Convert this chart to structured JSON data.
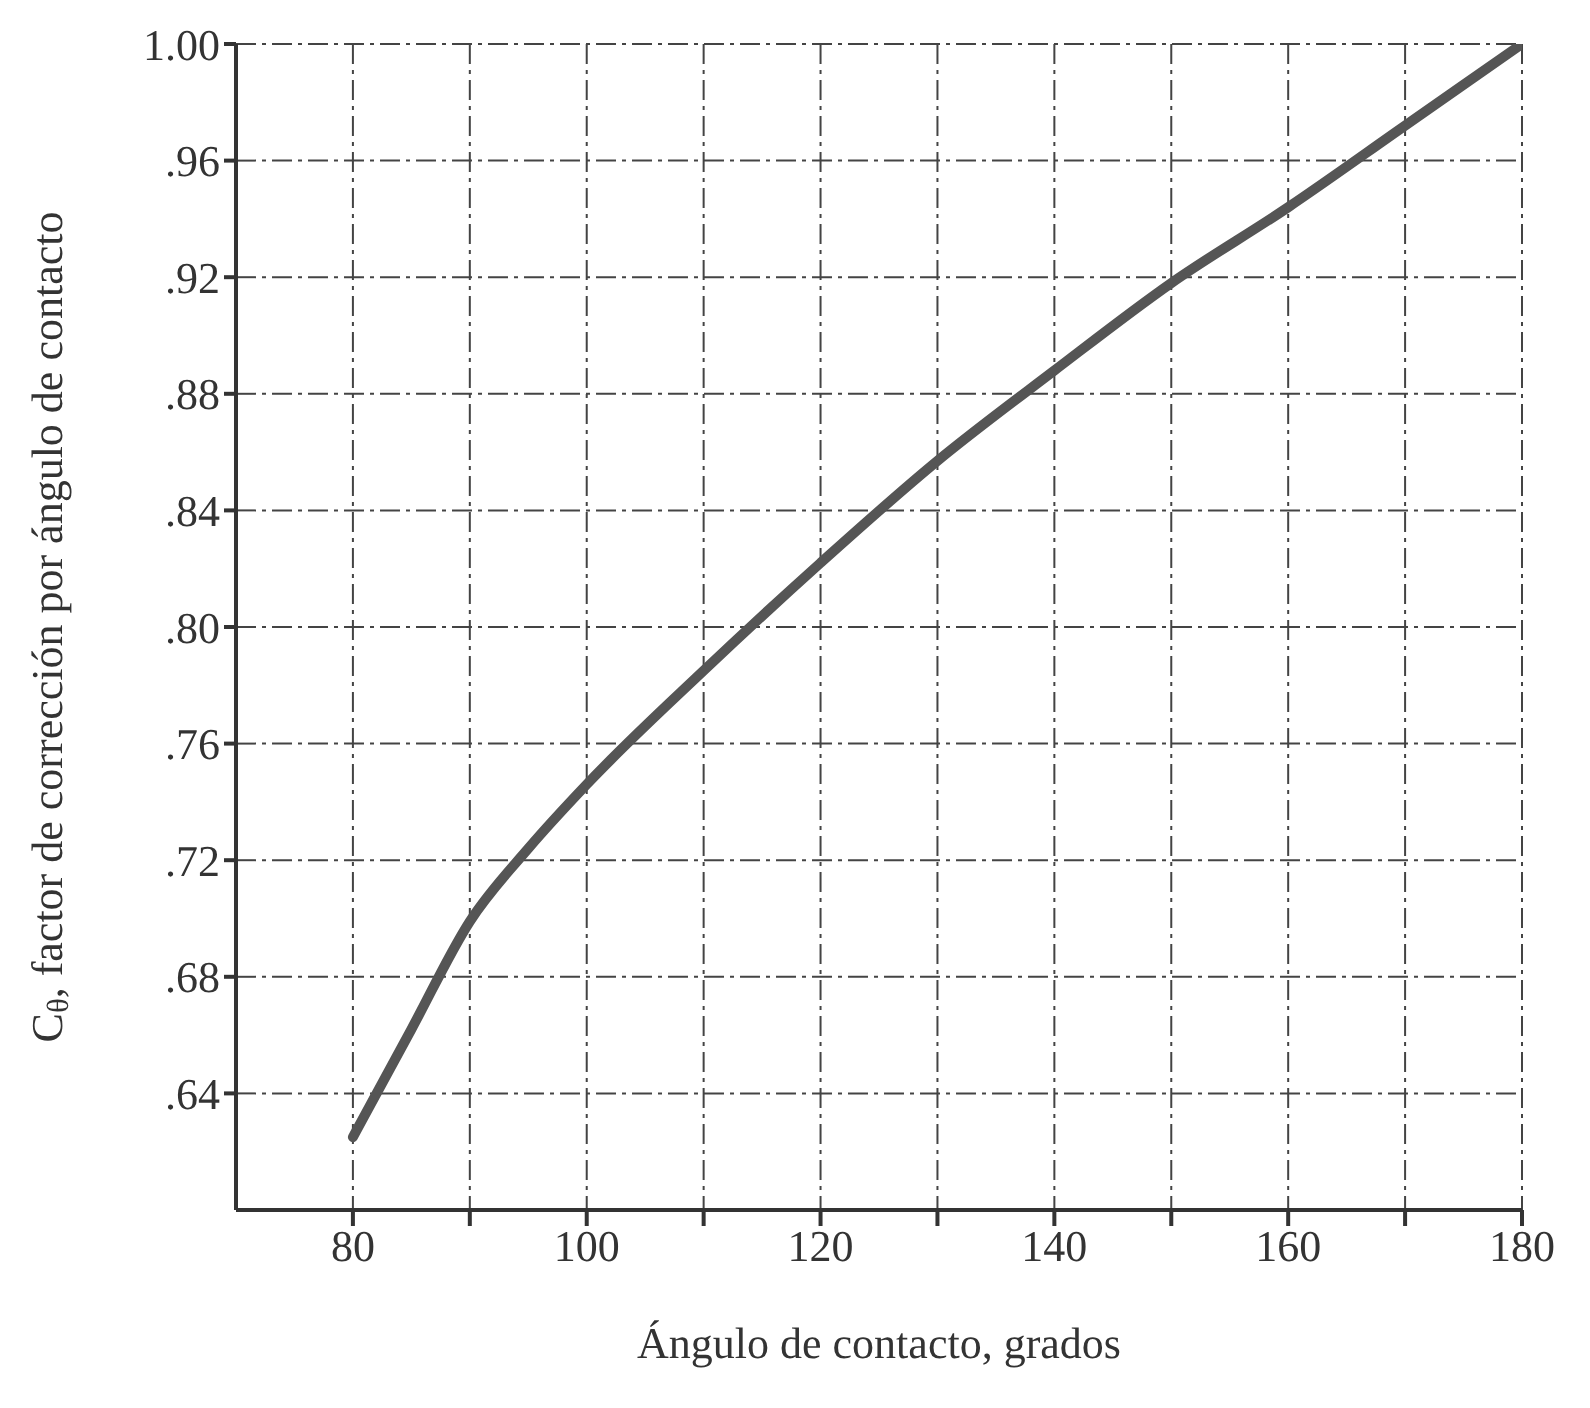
{
  "chart_data": {
    "type": "line",
    "xlabel": "Ángulo de contacto, grados",
    "ylabel": "C$_{θ}$, factor de corrección por ángulo de contacto",
    "x": [
      80,
      85,
      90,
      95,
      100,
      110,
      120,
      130,
      140,
      150,
      160,
      170,
      180
    ],
    "series": [
      {
        "color": "#555555",
        "values": [
          0.625,
          0.662,
          0.699,
          0.724,
          0.746,
          0.785,
          0.822,
          0.857,
          0.888,
          0.918,
          0.944,
          0.972,
          1.0
        ]
      }
    ],
    "xlim": [
      70,
      180
    ],
    "xticks": [
      80,
      {
        "value": 90,
        "label": null
      },
      100,
      {
        "value": 110,
        "label": null
      },
      120,
      {
        "value": 130,
        "label": null
      },
      140,
      {
        "value": 150,
        "label": null
      },
      160,
      {
        "value": 170,
        "label": null
      },
      180
    ],
    "ylim": [
      0.6,
      1.0
    ],
    "yticks": [
      {
        "value": 0.64,
        "label": ".64"
      },
      {
        "value": 0.68,
        "label": ".68"
      },
      {
        "value": 0.72,
        "label": ".72"
      },
      {
        "value": 0.76,
        "label": ".76"
      },
      {
        "value": 0.8,
        "label": ".80"
      },
      {
        "value": 0.84,
        "label": ".84"
      },
      {
        "value": 0.88,
        "label": ".88"
      },
      {
        "value": 0.92,
        "label": ".92"
      },
      {
        "value": 0.96,
        "label": ".96"
      },
      {
        "value": 1.0,
        "label": "1.00"
      }
    ],
    "grid": true,
    "marker": "none",
    "line_style": "solid",
    "legend": false
  }
}
